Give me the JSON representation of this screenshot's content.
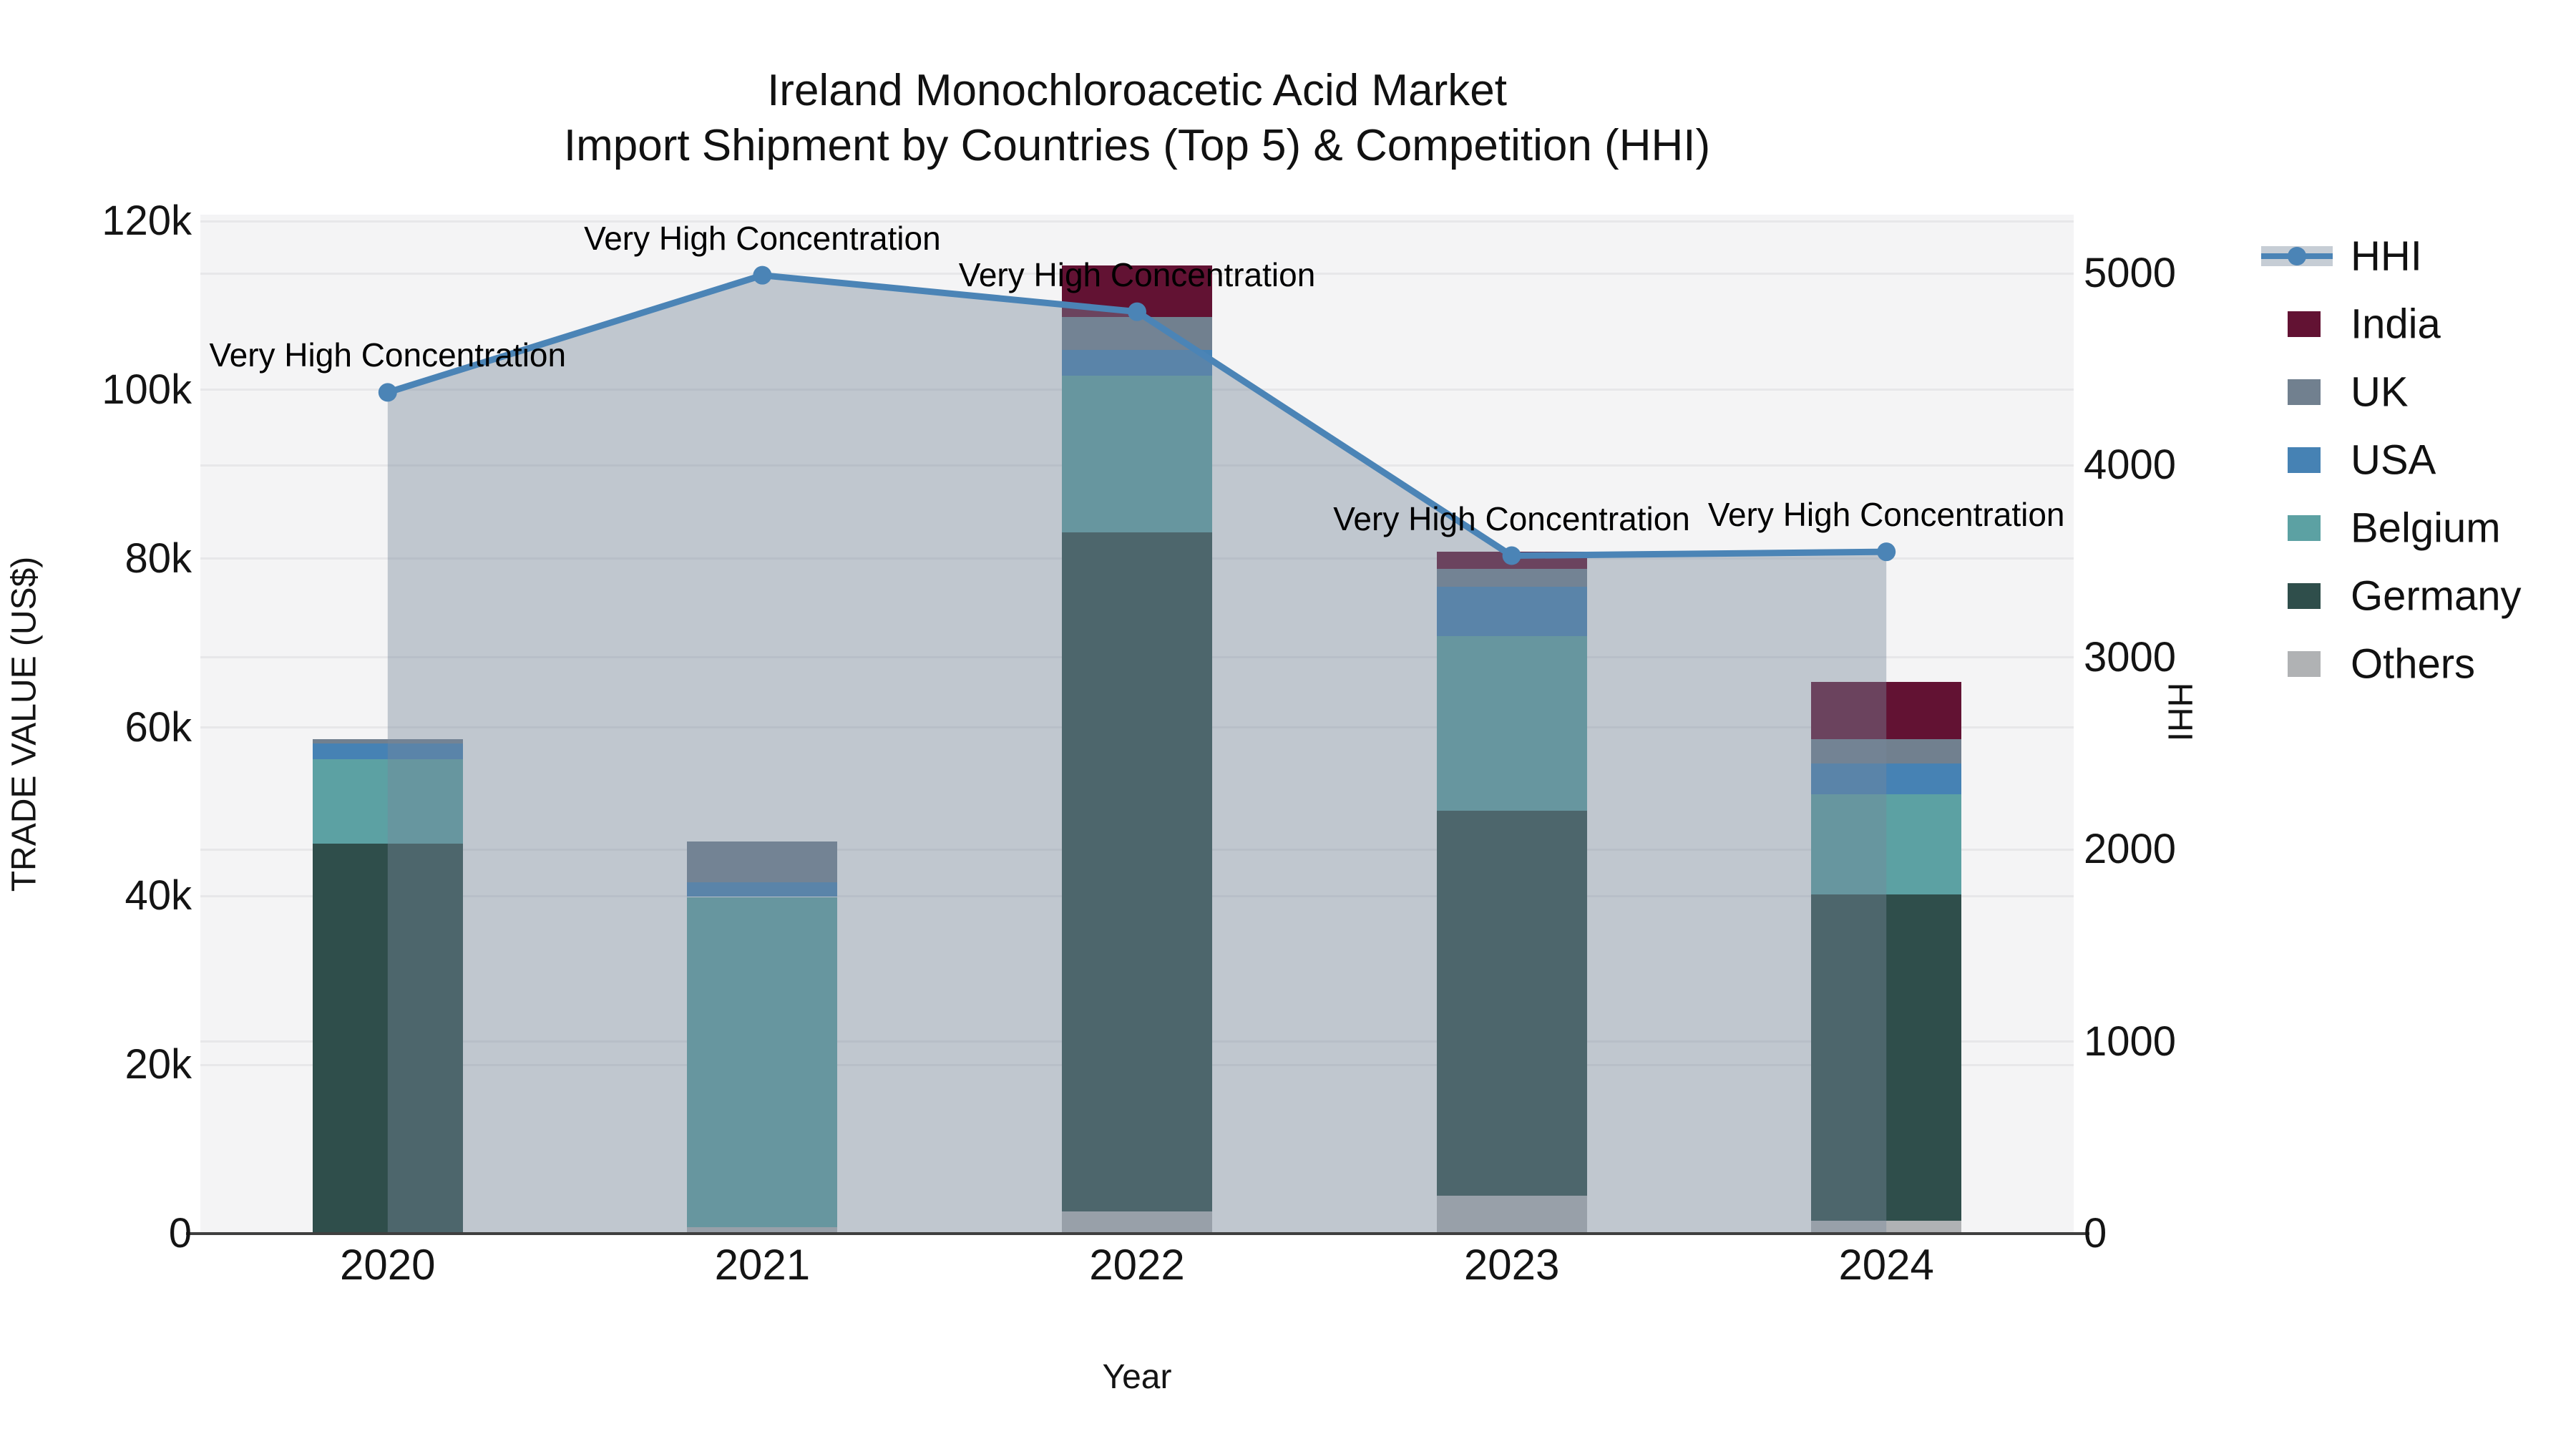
{
  "title": {
    "line1": "Ireland Monochloroacetic Acid Market",
    "line2": "Import Shipment by Countries (Top 5) & Competition (HHI)"
  },
  "x_axis": {
    "label": "Year"
  },
  "y_left": {
    "label": "TRADE VALUE (US$)",
    "ticks": [
      {
        "label": "0",
        "value": 0
      },
      {
        "label": "20k",
        "value": 20000
      },
      {
        "label": "40k",
        "value": 40000
      },
      {
        "label": "60k",
        "value": 60000
      },
      {
        "label": "80k",
        "value": 80000
      },
      {
        "label": "100k",
        "value": 100000
      },
      {
        "label": "120k",
        "value": 120000
      }
    ]
  },
  "y_right": {
    "label": "HHI",
    "ticks": [
      {
        "label": "0",
        "value": 0
      },
      {
        "label": "1000",
        "value": 1000
      },
      {
        "label": "2000",
        "value": 2000
      },
      {
        "label": "3000",
        "value": 3000
      },
      {
        "label": "4000",
        "value": 4000
      },
      {
        "label": "5000",
        "value": 5000
      }
    ]
  },
  "legend": [
    {
      "name": "HHI",
      "kind": "line",
      "color": "#4b84b6",
      "band_color": "rgba(120,137,155,0.42)"
    },
    {
      "name": "India",
      "kind": "patch",
      "color": "#621233"
    },
    {
      "name": "UK",
      "kind": "patch",
      "color": "#71808f"
    },
    {
      "name": "USA",
      "kind": "patch",
      "color": "#4682b4"
    },
    {
      "name": "Belgium",
      "kind": "patch",
      "color": "#5ca1a3"
    },
    {
      "name": "Germany",
      "kind": "patch",
      "color": "#2f4e4b"
    },
    {
      "name": "Others",
      "kind": "patch",
      "color": "#b0b2b4"
    }
  ],
  "chart_data": {
    "type": "bar",
    "subtype": "stacked-bars-with-line-overlay",
    "categories": [
      "2020",
      "2021",
      "2022",
      "2023",
      "2024"
    ],
    "stack_order_bottom_to_top": [
      "Others",
      "Germany",
      "Belgium",
      "USA",
      "UK",
      "India"
    ],
    "series": [
      {
        "name": "India",
        "color": "#621233",
        "values": [
          0,
          0,
          6100,
          2000,
          6800
        ]
      },
      {
        "name": "UK",
        "color": "#71808f",
        "values": [
          500,
          4900,
          3900,
          2100,
          2900
        ]
      },
      {
        "name": "USA",
        "color": "#4682b4",
        "values": [
          1900,
          1700,
          3000,
          5900,
          3600
        ]
      },
      {
        "name": "Belgium",
        "color": "#5ca1a3",
        "values": [
          10000,
          39100,
          18600,
          20700,
          11900
        ]
      },
      {
        "name": "Germany",
        "color": "#2f4e4b",
        "values": [
          46200,
          0,
          80500,
          45600,
          38700
        ]
      },
      {
        "name": "Others",
        "color": "#b0b2b4",
        "values": [
          0,
          800,
          2600,
          4500,
          1500
        ]
      }
    ],
    "line_series": {
      "name": "HHI",
      "color": "#4b84b6",
      "area_fill": "rgba(120,137,155,0.42)",
      "values": [
        4380,
        4990,
        4800,
        3530,
        3550
      ]
    },
    "annotations": [
      {
        "text": "Very High Concentration",
        "x_index": 0
      },
      {
        "text": "Very High Concentration",
        "x_index": 1
      },
      {
        "text": "Very High Concentration",
        "x_index": 2
      },
      {
        "text": "Very High Concentration",
        "x_index": 3
      },
      {
        "text": "Very High Concentration",
        "x_index": 4
      }
    ],
    "title": "Ireland Monochloroacetic Acid Market — Import Shipment by Countries (Top 5) & Competition (HHI)",
    "xlabel": "Year",
    "ylabel_left": "TRADE VALUE (US$)",
    "ylabel_right": "HHI",
    "y_left_range": [
      0,
      120000
    ],
    "y_right_range": [
      0,
      5000
    ],
    "grid": true,
    "legend_position": "right"
  }
}
